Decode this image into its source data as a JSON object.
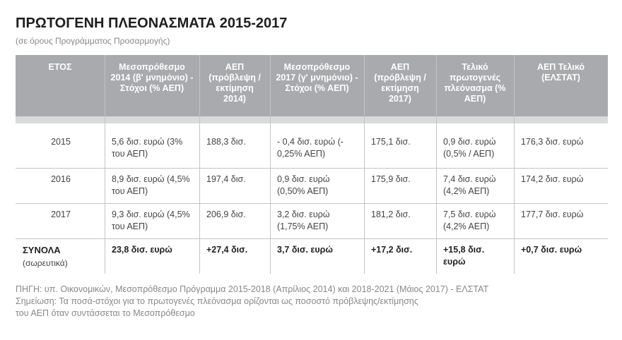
{
  "header": {
    "title": "ΠΡΩΤΟΓΕΝΗ ΠΛΕΟΝΑΣΜΑΤΑ 2015-2017",
    "subtitle": "(σε όρους Προγράμματος Προσαρμογής)"
  },
  "table": {
    "columns": [
      "ΕΤΟΣ",
      "Μεσοπρόθεσμο 2014 (β' μνημόνιο) - Στόχοι (% ΑΕΠ)",
      "ΑΕΠ (πρόβλεψη / εκτίμηση 2014)",
      "Μεσοπρόθεσμο 2017 (γ' μνημόνιο) - Στόχοι (% ΑΕΠ)",
      "ΑΕΠ (πρόβλεψη / εκτίμηση 2017)",
      "Τελικό πρωτογενές πλεόνασμα (% ΑΕΠ)",
      "ΑΕΠ Τελικό (ΕΛΣΤΑΤ)"
    ],
    "rows": [
      [
        "2015",
        "5,6 δισ. ευρώ (3% του ΑΕΠ)",
        "188,3 δισ.",
        "- 0,4 δισ. ευρώ (- 0,25% ΑΕΠ)",
        "175,1 δισ.",
        "0,9 δισ. ευρώ (0,5% / ΑΕΠ)",
        "176,3 δισ. ευρώ"
      ],
      [
        "2016",
        "8,9 δισ. ευρώ (4,5% του ΑΕΠ)",
        "197,4 δισ.",
        "0,9 δισ. ευρώ (0,50% ΑΕΠ)",
        "175,9 δισ.",
        "7,4 δισ. ευρώ (4,2% ΑΕΠ)",
        "174,2 δισ. ευρώ"
      ],
      [
        "2017",
        "9,3 δισ. ευρώ (4,5% του ΑΕΠ)",
        "206,9 δισ.",
        "3,2 δισ. ευρώ (1,75% ΑΕΠ)",
        "181,2 δισ.",
        "7,5 δισ. ευρώ (4,2% ΑΕΠ)",
        "177,7 δισ. ευρώ"
      ]
    ],
    "totals": {
      "label": "ΣΥΝΟΛΑ",
      "sublabel": "(σωρευτικά)",
      "values": [
        "23,8 δισ. ευρώ",
        "+27,4 δισ.",
        "3,7 δισ. ευρώ",
        "+17,2 δισ.",
        "+15,8 δισ. ευρώ",
        "+0,7 δισ. ευρώ"
      ]
    }
  },
  "footer": {
    "source": "ΠΗΓΗ: υπ. Οικονομικών, Μεσοπρόθεσμο Πρόγραμμα 2015-2018 (Απρίλιος 2014) και 2018-2021 (Μάιος 2017) - ΕΛΣΤΑΤ",
    "note": [
      "Σημείωση: Τα ποσά-στόχοι για το πρωτογενές πλεόνασμα ορίζονται ως ποσοστό πρόβλεψης/εκτίμησης",
      "του ΑΕΠ όταν συντάσσεται το Μεσοπρόθεσμο"
    ]
  }
}
